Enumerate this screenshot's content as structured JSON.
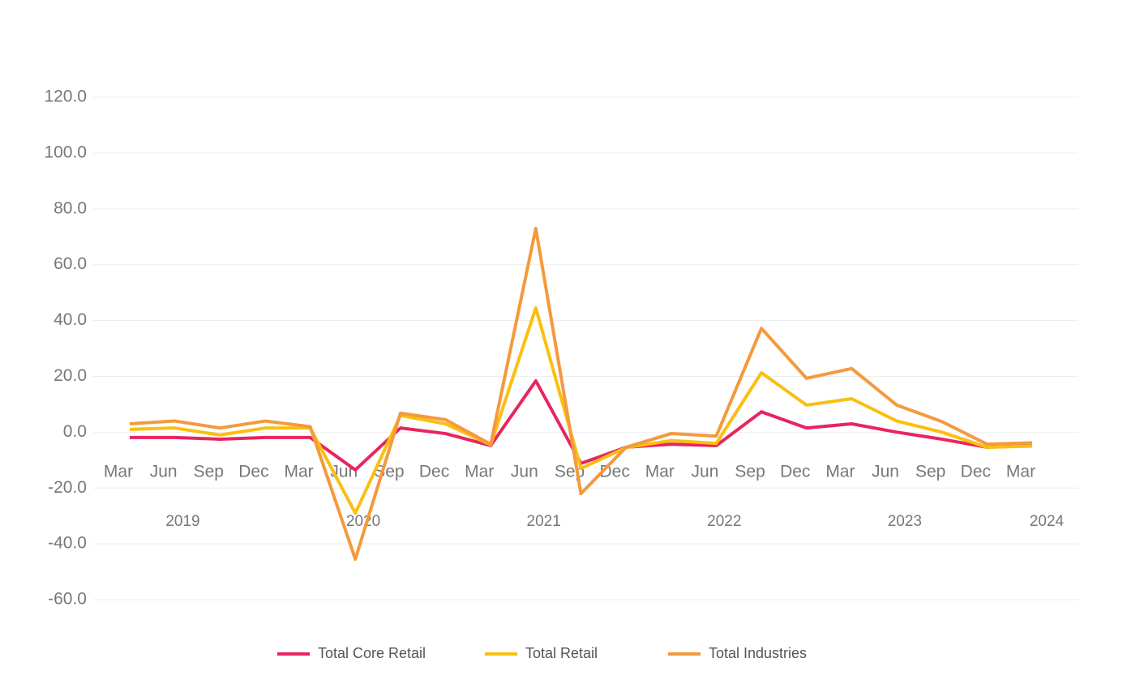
{
  "chart_data": {
    "type": "line",
    "categories": [
      "Mar",
      "Jun",
      "Sep",
      "Dec",
      "Mar",
      "Jun",
      "Sep",
      "Dec",
      "Mar",
      "Jun",
      "Sep",
      "Dec",
      "Mar",
      "Jun",
      "Sep",
      "Dec",
      "Mar",
      "Jun",
      "Sep",
      "Dec",
      "Mar"
    ],
    "x_group_labels": [
      "2019",
      "2020",
      "2021",
      "2022",
      "2023",
      "2024"
    ],
    "series": [
      {
        "name": "Total Core Retail",
        "color": "#e8255f",
        "values": [
          -1.9,
          -1.9,
          -2.5,
          -1.9,
          -1.9,
          -13.5,
          1.5,
          -0.5,
          -4.8,
          18.4,
          -11.2,
          -5.4,
          -4.3,
          -4.8,
          7.3,
          1.5,
          3.0,
          0,
          -2.5,
          -5.4,
          -4.8
        ]
      },
      {
        "name": "Total Retail",
        "color": "#fbbf10",
        "values": [
          1.0,
          1.5,
          -1.0,
          1.5,
          1.5,
          -29,
          6,
          3,
          -4.5,
          44.5,
          -13,
          -5.5,
          -3,
          -4,
          21.3,
          9.7,
          12,
          4,
          0,
          -5.4,
          -5
        ]
      },
      {
        "name": "Total Industries",
        "color": "#f49a3d",
        "values": [
          3,
          4,
          1.5,
          4,
          2,
          -45.5,
          6.8,
          4.5,
          -4.3,
          73,
          -22,
          -5.4,
          -0.5,
          -1.4,
          37.2,
          19.3,
          22.8,
          9.7,
          3.8,
          -4.3,
          -3.8
        ]
      }
    ],
    "ylim": [
      -60,
      120
    ],
    "yticks": [
      {
        "value": -60,
        "label": "-60.0"
      },
      {
        "value": -40,
        "label": "-40.0"
      },
      {
        "value": -20,
        "label": "-20.0"
      },
      {
        "value": 0,
        "label": "0.0"
      },
      {
        "value": 20,
        "label": "20.0"
      },
      {
        "value": 40,
        "label": "40.0"
      },
      {
        "value": 60,
        "label": "60.0"
      },
      {
        "value": 80,
        "label": "80.0"
      },
      {
        "value": 100,
        "label": "100.0"
      },
      {
        "value": 120,
        "label": "120.0"
      }
    ],
    "grid": true
  }
}
